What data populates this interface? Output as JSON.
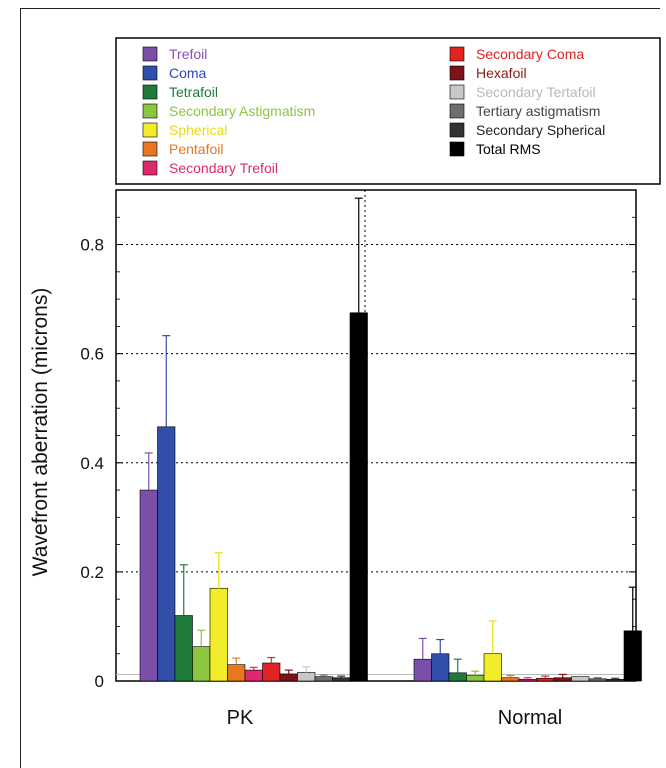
{
  "chart_data": {
    "type": "bar",
    "ylabel": "Wavefront aberration (microns)",
    "xlabel": "",
    "ylim": [
      0,
      0.9
    ],
    "yticks": [
      {
        "value": 0,
        "label": "0"
      },
      {
        "value": 0.2,
        "label": "0.2"
      },
      {
        "value": 0.4,
        "label": "0.4"
      },
      {
        "value": 0.6,
        "label": "0.6"
      },
      {
        "value": 0.8,
        "label": "0.8"
      }
    ],
    "categories": [
      "PK",
      "Normal"
    ],
    "grid": true,
    "legend_position": "top",
    "series": [
      {
        "name": "Trefoil",
        "color": "#7B4FA8",
        "text_color": "#8A4FC0",
        "values": [
          0.35,
          0.04
        ],
        "errors": [
          0.068,
          0.038
        ]
      },
      {
        "name": "Coma",
        "color": "#2F4FA8",
        "text_color": "#3044B8",
        "values": [
          0.466,
          0.05
        ],
        "errors": [
          0.167,
          0.026
        ]
      },
      {
        "name": "Tetrafoil",
        "color": "#1E7B3A",
        "text_color": "#1E7B3A",
        "values": [
          0.12,
          0.015
        ],
        "errors": [
          0.093,
          0.025
        ]
      },
      {
        "name": "Secondary Astigmatism",
        "color": "#8CC63F",
        "text_color": "#8CC63F",
        "values": [
          0.063,
          0.01
        ],
        "errors": [
          0.03,
          0.008
        ]
      },
      {
        "name": "Spherical",
        "color": "#F2EC2A",
        "text_color": "#E8DC10",
        "values": [
          0.17,
          0.05
        ],
        "errors": [
          0.065,
          0.06
        ]
      },
      {
        "name": "Pentafoil",
        "color": "#E87722",
        "text_color": "#E87722",
        "values": [
          0.03,
          0.006
        ],
        "errors": [
          0.012,
          0.004
        ]
      },
      {
        "name": "Secondary Trefoil",
        "color": "#E0286E",
        "text_color": "#E0286E",
        "values": [
          0.02,
          0.003
        ],
        "errors": [
          0.005,
          0.003
        ]
      },
      {
        "name": "Secondary Coma",
        "color": "#E02424",
        "text_color": "#E02424",
        "values": [
          0.033,
          0.005
        ],
        "errors": [
          0.01,
          0.004
        ]
      },
      {
        "name": "Hexafoil",
        "color": "#7A1418",
        "text_color": "#8B1A1A",
        "values": [
          0.013,
          0.006
        ],
        "errors": [
          0.007,
          0.006
        ]
      },
      {
        "name": "Secondary Tertafoil",
        "color": "#C8C8C8",
        "text_color": "#B8B8B8",
        "values": [
          0.016,
          0.008
        ],
        "errors": [
          0.01,
          0.004
        ]
      },
      {
        "name": "Tertiary astigmatism",
        "color": "#6E6E6E",
        "text_color": "#444444",
        "values": [
          0.008,
          0.004
        ],
        "errors": [
          0.003,
          0.002
        ]
      },
      {
        "name": "Secondary Spherical",
        "color": "#333333",
        "text_color": "#222222",
        "values": [
          0.006,
          0.003
        ],
        "errors": [
          0.003,
          0.002
        ]
      },
      {
        "name": "Total RMS",
        "color": "#000000",
        "text_color": "#000000",
        "values": [
          0.675,
          0.092
        ],
        "errors": [
          0.21,
          0.08
        ]
      }
    ]
  }
}
